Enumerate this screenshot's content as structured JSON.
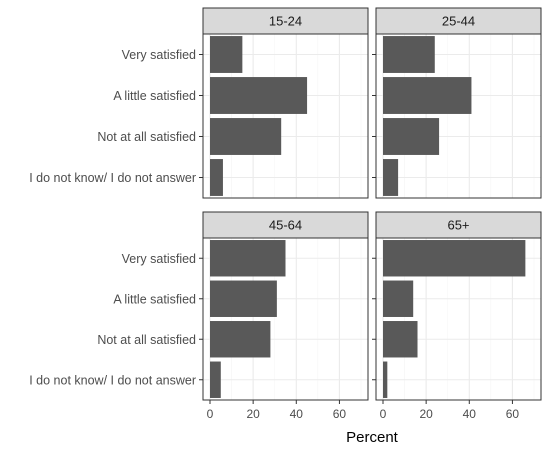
{
  "chart_data": {
    "type": "bar",
    "orientation": "horizontal",
    "facet_layout": "2x2",
    "xlabel": "Percent",
    "xlim": [
      0,
      70
    ],
    "xticks": [
      0,
      20,
      40,
      60
    ],
    "grid": true,
    "bar_color": "#595959",
    "categories": [
      "Very satisfied",
      "A little satisfied",
      "Not at all satisfied",
      "I do not know/ I do not answer"
    ],
    "panels": [
      {
        "title": "15-24",
        "values": [
          15,
          45,
          33,
          6
        ]
      },
      {
        "title": "25-44",
        "values": [
          24,
          41,
          26,
          7
        ]
      },
      {
        "title": "45-64",
        "values": [
          35,
          31,
          28,
          5
        ]
      },
      {
        "title": "65+",
        "values": [
          66,
          14,
          16,
          2
        ]
      }
    ]
  }
}
